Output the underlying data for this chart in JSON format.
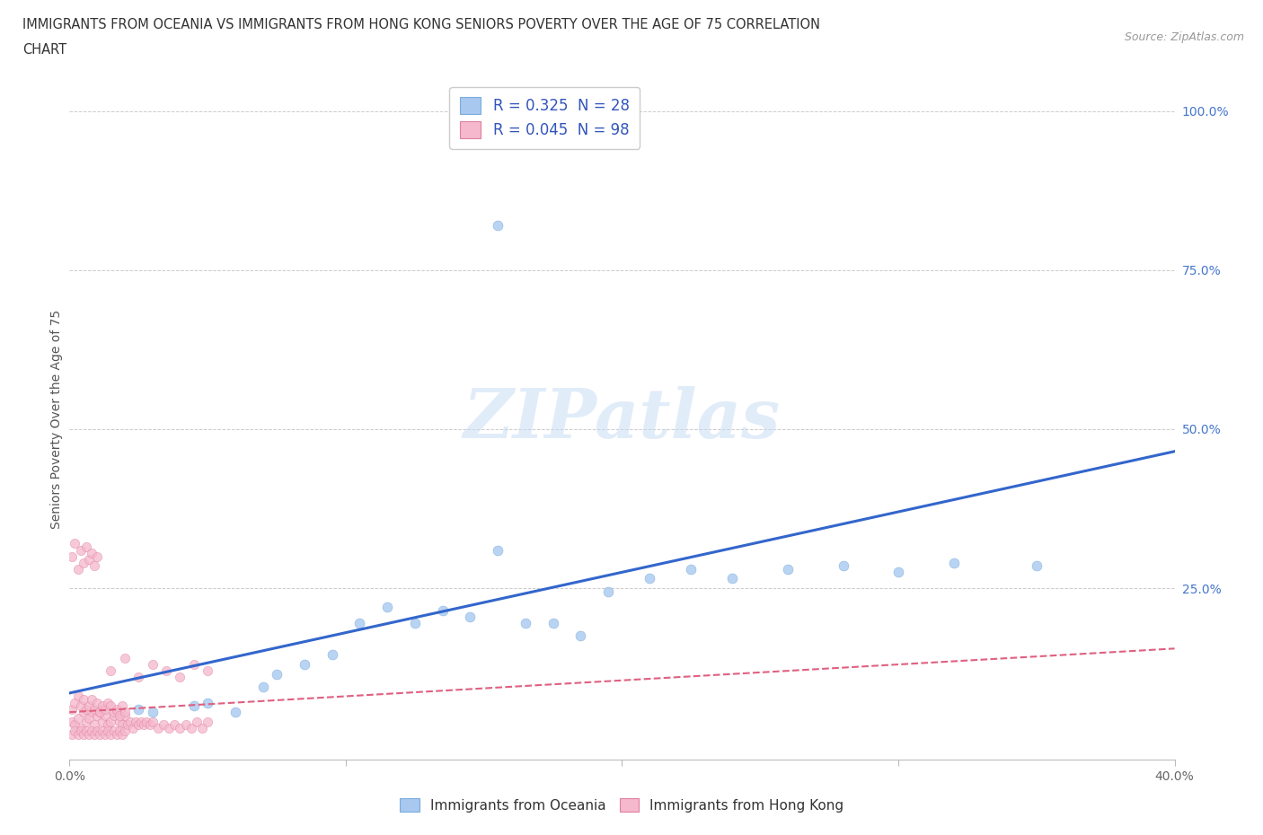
{
  "title_line1": "IMMIGRANTS FROM OCEANIA VS IMMIGRANTS FROM HONG KONG SENIORS POVERTY OVER THE AGE OF 75 CORRELATION",
  "title_line2": "CHART",
  "source_text": "Source: ZipAtlas.com",
  "ylabel": "Seniors Poverty Over the Age of 75",
  "xlim": [
    0.0,
    0.4
  ],
  "ylim": [
    -0.02,
    1.05
  ],
  "xticks_major": [
    0.0,
    0.1,
    0.2,
    0.3,
    0.4
  ],
  "yticks": [
    0.0,
    0.25,
    0.5,
    0.75,
    1.0
  ],
  "yticklabels": [
    "",
    "25.0%",
    "50.0%",
    "75.0%",
    "100.0%"
  ],
  "background_color": "#ffffff",
  "grid_color": "#cccccc",
  "legend_R1": "0.325",
  "legend_N1": "28",
  "legend_R2": "0.045",
  "legend_N2": "98",
  "color_oceania": "#a8c8f0",
  "color_hk": "#f5b8cc",
  "edge_oceania": "#7aacdc",
  "edge_hk": "#e080a0",
  "trendline_oceania_color": "#3366cc",
  "trendline_hk_color": "#e06080",
  "oce_trend_x": [
    0.0,
    0.4
  ],
  "oce_trend_y": [
    0.085,
    0.465
  ],
  "hk_trend_x": [
    0.0,
    0.4
  ],
  "hk_trend_y": [
    0.055,
    0.155
  ],
  "watermark_text": "ZIPatlas",
  "legend1_label": "R = 0.325  N = 28",
  "legend2_label": "R = 0.045  N = 98",
  "legend_bottom_1": "Immigrants from Oceania",
  "legend_bottom_2": "Immigrants from Hong Kong",
  "oceania_x": [
    0.025,
    0.03,
    0.045,
    0.05,
    0.06,
    0.07,
    0.075,
    0.085,
    0.095,
    0.105,
    0.115,
    0.125,
    0.135,
    0.145,
    0.155,
    0.165,
    0.175,
    0.185,
    0.195,
    0.21,
    0.225,
    0.24,
    0.26,
    0.28,
    0.3,
    0.32,
    0.35,
    0.155
  ],
  "oceania_y": [
    0.06,
    0.055,
    0.065,
    0.07,
    0.055,
    0.095,
    0.115,
    0.13,
    0.145,
    0.195,
    0.22,
    0.195,
    0.215,
    0.205,
    0.31,
    0.195,
    0.195,
    0.175,
    0.245,
    0.265,
    0.28,
    0.265,
    0.28,
    0.285,
    0.275,
    0.29,
    0.285,
    0.82
  ],
  "hk_x": [
    0.001,
    0.002,
    0.003,
    0.004,
    0.005,
    0.006,
    0.007,
    0.008,
    0.009,
    0.01,
    0.011,
    0.012,
    0.013,
    0.014,
    0.015,
    0.016,
    0.017,
    0.018,
    0.019,
    0.02,
    0.001,
    0.002,
    0.003,
    0.004,
    0.005,
    0.006,
    0.007,
    0.008,
    0.009,
    0.01,
    0.011,
    0.012,
    0.013,
    0.014,
    0.015,
    0.016,
    0.017,
    0.018,
    0.019,
    0.02,
    0.001,
    0.002,
    0.003,
    0.004,
    0.005,
    0.006,
    0.007,
    0.008,
    0.009,
    0.01,
    0.011,
    0.012,
    0.013,
    0.014,
    0.015,
    0.016,
    0.017,
    0.018,
    0.019,
    0.02,
    0.021,
    0.022,
    0.023,
    0.024,
    0.025,
    0.026,
    0.027,
    0.028,
    0.029,
    0.03,
    0.032,
    0.034,
    0.036,
    0.038,
    0.04,
    0.042,
    0.044,
    0.046,
    0.048,
    0.05,
    0.001,
    0.002,
    0.003,
    0.004,
    0.005,
    0.006,
    0.007,
    0.008,
    0.009,
    0.01,
    0.015,
    0.02,
    0.025,
    0.03,
    0.035,
    0.04,
    0.045,
    0.05
  ],
  "hk_y": [
    0.04,
    0.035,
    0.045,
    0.03,
    0.055,
    0.04,
    0.045,
    0.055,
    0.035,
    0.05,
    0.055,
    0.04,
    0.05,
    0.035,
    0.04,
    0.05,
    0.055,
    0.04,
    0.035,
    0.05,
    0.06,
    0.07,
    0.08,
    0.065,
    0.075,
    0.06,
    0.065,
    0.075,
    0.06,
    0.07,
    0.055,
    0.065,
    0.06,
    0.07,
    0.065,
    0.055,
    0.06,
    0.05,
    0.065,
    0.055,
    0.02,
    0.025,
    0.02,
    0.025,
    0.02,
    0.025,
    0.02,
    0.025,
    0.02,
    0.025,
    0.02,
    0.025,
    0.02,
    0.025,
    0.02,
    0.025,
    0.02,
    0.025,
    0.02,
    0.025,
    0.035,
    0.04,
    0.03,
    0.04,
    0.035,
    0.04,
    0.035,
    0.04,
    0.035,
    0.04,
    0.03,
    0.035,
    0.03,
    0.035,
    0.03,
    0.035,
    0.03,
    0.04,
    0.03,
    0.04,
    0.3,
    0.32,
    0.28,
    0.31,
    0.29,
    0.315,
    0.295,
    0.305,
    0.285,
    0.3,
    0.12,
    0.14,
    0.11,
    0.13,
    0.12,
    0.11,
    0.13,
    0.12
  ]
}
